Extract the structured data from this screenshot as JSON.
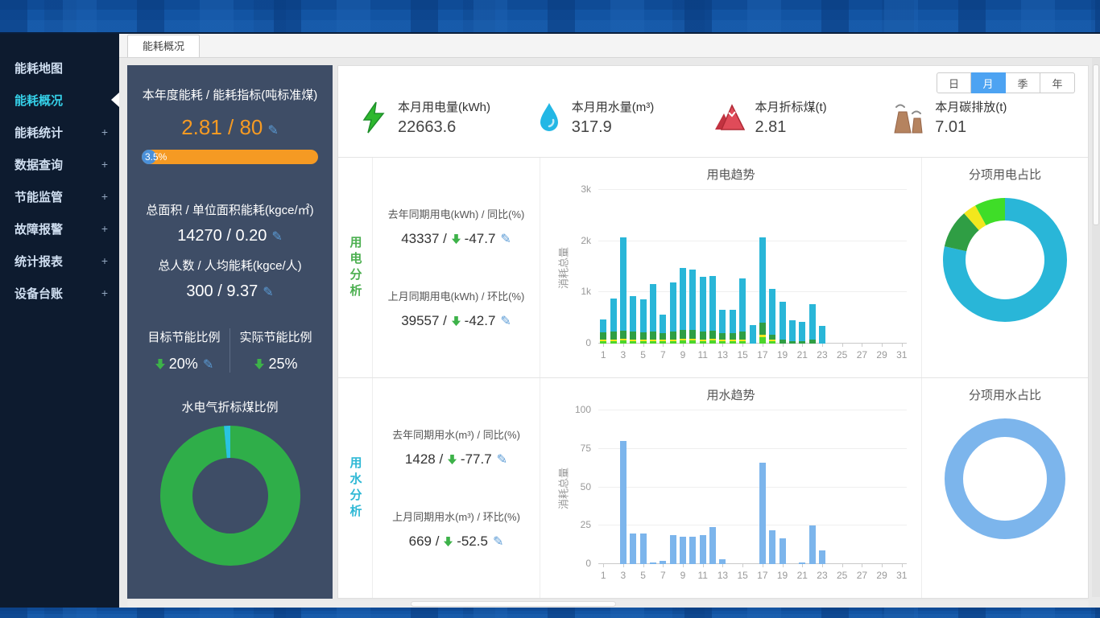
{
  "tabbar": {
    "active_tab": "能耗概况"
  },
  "sidebar": {
    "items": [
      {
        "label": "能耗地图",
        "name": "energy-map",
        "expandable": false,
        "active": false
      },
      {
        "label": "能耗概况",
        "name": "energy-overview",
        "expandable": false,
        "active": true
      },
      {
        "label": "能耗统计",
        "name": "energy-statistics",
        "expandable": true,
        "active": false
      },
      {
        "label": "数据查询",
        "name": "data-query",
        "expandable": true,
        "active": false
      },
      {
        "label": "节能监管",
        "name": "energy-saving-supervision",
        "expandable": true,
        "active": false
      },
      {
        "label": "故障报警",
        "name": "fault-alarm",
        "expandable": true,
        "active": false
      },
      {
        "label": "统计报表",
        "name": "statistical-reports",
        "expandable": true,
        "active": false
      },
      {
        "label": "设备台账",
        "name": "equipment-ledger",
        "expandable": true,
        "active": false
      }
    ]
  },
  "summary_panel": {
    "annual": {
      "title": "本年度能耗 / 能耗指标(吨标准煤)",
      "value": "2.81 / 80",
      "progress_label": "3.5%",
      "progress_percent": 3.5,
      "value_color": "#f59a23",
      "bar_color": "#f59a23"
    },
    "area": {
      "title": "总面积 / 单位面积能耗(kgce/㎡)",
      "value": "14270 / 0.20"
    },
    "people": {
      "title": "总人数 / 人均能耗(kgce/人)",
      "value": "300 / 9.37"
    },
    "target_saving": {
      "title": "目标节能比例",
      "value": "20%",
      "trend": "down"
    },
    "actual_saving": {
      "title": "实际节能比例",
      "value": "25%",
      "trend": "down"
    }
  },
  "period_switch": {
    "options": [
      "日",
      "月",
      "季",
      "年"
    ],
    "active": "月",
    "active_color": "#4da3f2"
  },
  "stat_cards": [
    {
      "label": "本月用电量(kWh)",
      "value": "22663.6",
      "icon": "lightning-icon",
      "icon_color": "#2eb82e"
    },
    {
      "label": "本月用水量(m³)",
      "value": "317.9",
      "icon": "water-drop-icon",
      "icon_color": "#23b7e5"
    },
    {
      "label": "本月折标煤(t)",
      "value": "2.81",
      "icon": "mountain-icon",
      "icon_color": "#e04b59"
    },
    {
      "label": "本月碳排放(t)",
      "value": "7.01",
      "icon": "factory-icon",
      "icon_color": "#b5835f"
    }
  ],
  "electricity_section": {
    "side_label": "用电分析",
    "accent_color": "#4caf50",
    "stat1_title": "去年同期用电(kWh) / 同比(%)",
    "stat1_value": "43337 /",
    "stat1_delta": "-47.7",
    "stat1_trend": "down",
    "stat2_title": "上月同期用电(kWh) / 环比(%)",
    "stat2_value": "39557 /",
    "stat2_delta": "-42.7",
    "stat2_trend": "down"
  },
  "water_section": {
    "side_label": "用水分析",
    "accent_color": "#2eb8d5",
    "stat1_title": "去年同期用水(m³) / 同比(%)",
    "stat1_value": "1428 /",
    "stat1_delta": "-77.7",
    "stat1_trend": "down",
    "stat2_title": "上月同期用水(m³) / 环比(%)",
    "stat2_value": "669 /",
    "stat2_delta": "-52.5",
    "stat2_trend": "down"
  },
  "chart_data": [
    {
      "id": "electricity_trend",
      "type": "bar",
      "stacked": true,
      "title": "用电趋势",
      "ylabel": "消耗总量",
      "ylim": [
        0,
        3000
      ],
      "yticks": [
        0,
        1000,
        2000,
        3000
      ],
      "ytick_labels": [
        "0",
        "1k",
        "2k",
        "3k"
      ],
      "x_labels": [
        1,
        3,
        5,
        7,
        9,
        11,
        13,
        15,
        17,
        19,
        21,
        23,
        25,
        27,
        29,
        31
      ],
      "series": [
        {
          "name": "segment-lime",
          "color": "#4cd62b",
          "values": [
            50,
            55,
            60,
            55,
            50,
            55,
            50,
            55,
            60,
            60,
            55,
            60,
            50,
            50,
            55,
            0,
            130,
            50,
            0,
            0,
            0,
            0,
            0,
            0,
            0,
            0,
            0,
            0,
            0,
            0,
            0
          ]
        },
        {
          "name": "segment-yellow",
          "color": "#f2e71d",
          "values": [
            30,
            30,
            35,
            30,
            30,
            30,
            28,
            30,
            35,
            35,
            30,
            35,
            28,
            28,
            30,
            0,
            45,
            30,
            0,
            0,
            0,
            0,
            0,
            0,
            0,
            0,
            0,
            0,
            0,
            0,
            0
          ]
        },
        {
          "name": "segment-green",
          "color": "#2f9e44",
          "values": [
            140,
            150,
            160,
            150,
            140,
            150,
            130,
            150,
            170,
            170,
            150,
            160,
            130,
            130,
            150,
            0,
            240,
            90,
            80,
            50,
            50,
            80,
            0,
            0,
            0,
            0,
            0,
            0,
            0,
            0,
            0
          ]
        },
        {
          "name": "segment-cyan",
          "color": "#29b6d8",
          "values": [
            250,
            645,
            1825,
            695,
            640,
            925,
            362,
            965,
            1215,
            1175,
            1065,
            1065,
            452,
            452,
            1035,
            360,
            1665,
            900,
            740,
            400,
            370,
            690,
            350,
            0,
            0,
            0,
            0,
            0,
            0,
            0,
            0
          ]
        }
      ]
    },
    {
      "id": "electricity_breakdown",
      "type": "pie",
      "title": "分项用电占比",
      "slices": [
        {
          "value": 78.5,
          "color": "#29b6d8"
        },
        {
          "value": 10,
          "color": "#2f9e44"
        },
        {
          "value": 3.5,
          "color": "#f2e71d"
        },
        {
          "value": 8,
          "color": "#3fdd28"
        }
      ]
    },
    {
      "id": "water_trend",
      "type": "bar",
      "stacked": false,
      "title": "用水趋势",
      "ylabel": "消耗总量",
      "ylim": [
        0,
        100
      ],
      "yticks": [
        0,
        25,
        50,
        75,
        100
      ],
      "ytick_labels": [
        "0",
        "25",
        "50",
        "75",
        "100"
      ],
      "x_labels": [
        1,
        3,
        5,
        7,
        9,
        11,
        13,
        15,
        17,
        19,
        21,
        23,
        25,
        27,
        29,
        31
      ],
      "series": [
        {
          "name": "water-usage",
          "color": "#7cb5ec",
          "values": [
            0,
            0,
            80,
            20,
            20,
            1,
            2,
            19,
            18,
            18,
            19,
            24,
            3,
            0,
            0,
            0,
            66,
            22,
            17,
            0,
            1,
            25,
            9,
            0,
            0,
            0,
            0,
            0,
            0,
            0,
            0
          ]
        }
      ]
    },
    {
      "id": "water_breakdown",
      "type": "pie",
      "title": "分项用水占比",
      "slices": [
        {
          "value": 100,
          "color": "#7cb5ec"
        }
      ]
    },
    {
      "id": "coal_ratio",
      "type": "pie",
      "title": "水电气折标煤比例",
      "slices": [
        {
          "value": 98.5,
          "color": "#2fae49"
        },
        {
          "value": 1.5,
          "color": "#29c4e0"
        }
      ]
    }
  ]
}
